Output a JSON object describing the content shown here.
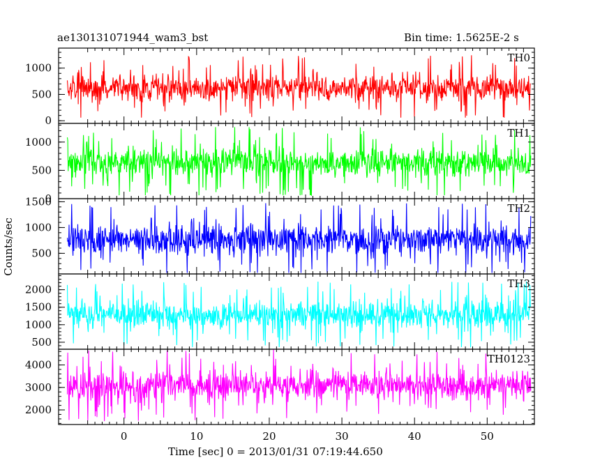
{
  "header": {
    "title": "ae130131071944_wam3_bst",
    "bin_time": "Bin time: 1.5625E-2 s"
  },
  "chart_data": {
    "type": "line",
    "ylabel": "Counts/sec",
    "xlabel": "Time [sec] 0 = 2013/01/31 07:19:44.650",
    "xlim": [
      -9,
      56.5
    ],
    "x_ticks": [
      0,
      10,
      20,
      30,
      40,
      50
    ],
    "data_x_range": [
      -7.8,
      56
    ],
    "panels": [
      {
        "name": "TH0",
        "color": "#ff0000",
        "ylim": [
          -50,
          1380
        ],
        "y_ticks": [
          0,
          500,
          1000
        ],
        "center": 620,
        "spread": 330,
        "min": 60,
        "max": 1380
      },
      {
        "name": "TH1",
        "color": "#00ff00",
        "ylim": [
          0,
          1330
        ],
        "y_ticks": [
          0,
          500,
          1000
        ],
        "center": 640,
        "spread": 330,
        "min": 60,
        "max": 1330
      },
      {
        "name": "TH2",
        "color": "#0000ff",
        "ylim": [
          100,
          1560
        ],
        "y_ticks": [
          500,
          1000,
          1500
        ],
        "center": 760,
        "spread": 380,
        "min": 120,
        "max": 1560
      },
      {
        "name": "TH3",
        "color": "#00ffff",
        "ylim": [
          300,
          2450
        ],
        "y_ticks": [
          500,
          1000,
          1500,
          2000
        ],
        "center": 1300,
        "spread": 500,
        "min": 340,
        "max": 2450
      },
      {
        "name": "TH0123",
        "color": "#ff00ff",
        "ylim": [
          1350,
          4700
        ],
        "y_ticks": [
          2000,
          3000,
          4000
        ],
        "center": 3100,
        "spread": 850,
        "min": 1350,
        "max": 4700
      }
    ]
  }
}
